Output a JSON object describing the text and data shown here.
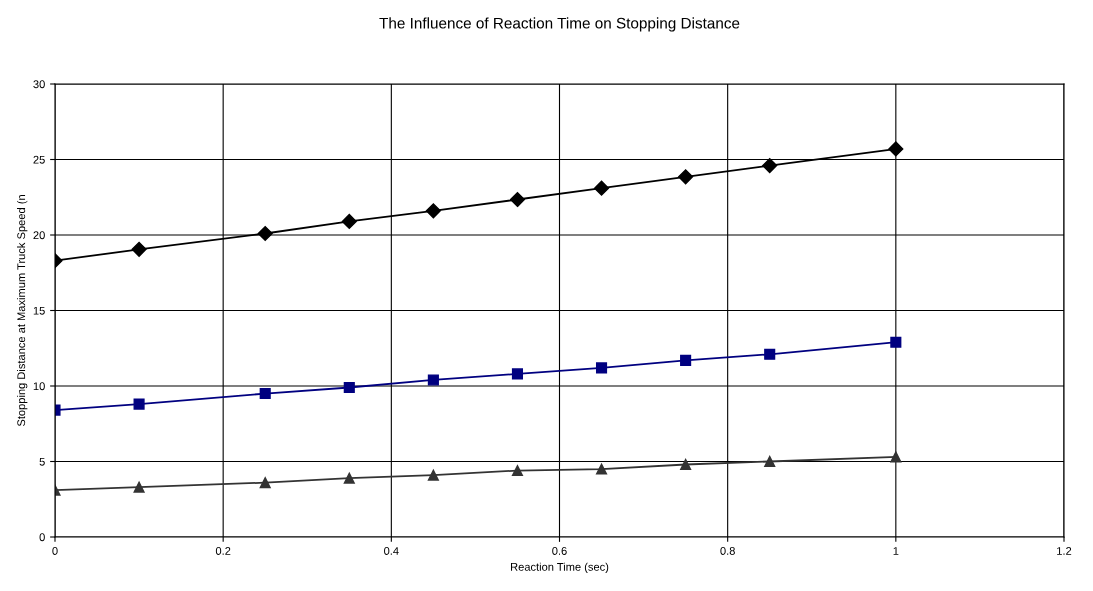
{
  "chart_data": {
    "type": "line",
    "title": "The Influence of Reaction Time on Stopping Distance",
    "xlabel": "Reaction Time (sec)",
    "ylabel": "Stopping Distance at Maximum Truck Speed (n",
    "x": [
      0,
      0.1,
      0.25,
      0.35,
      0.45,
      0.55,
      0.65,
      0.75,
      0.85,
      1
    ],
    "series": [
      {
        "color": "#000000",
        "marker": "diamond",
        "values": [
          18.3,
          19.05,
          20.1,
          20.9,
          21.6,
          22.35,
          23.1,
          23.85,
          24.6,
          25.7
        ]
      },
      {
        "color": "#000080",
        "marker": "square",
        "values": [
          8.4,
          8.8,
          9.5,
          9.9,
          10.4,
          10.8,
          11.2,
          11.7,
          12.1,
          12.9
        ]
      },
      {
        "color": "#333333",
        "marker": "triangle",
        "values": [
          3.1,
          3.3,
          3.6,
          3.9,
          4.1,
          4.4,
          4.5,
          4.8,
          5.0,
          5.3
        ]
      }
    ],
    "xlim": [
      0,
      1.2
    ],
    "xticks": [
      0,
      0.2,
      0.4,
      0.6,
      0.8,
      1,
      1.2
    ],
    "ylim": [
      0,
      30
    ],
    "yticks": [
      0,
      5,
      10,
      15,
      20,
      25,
      30
    ],
    "grid": true,
    "legend": false
  }
}
